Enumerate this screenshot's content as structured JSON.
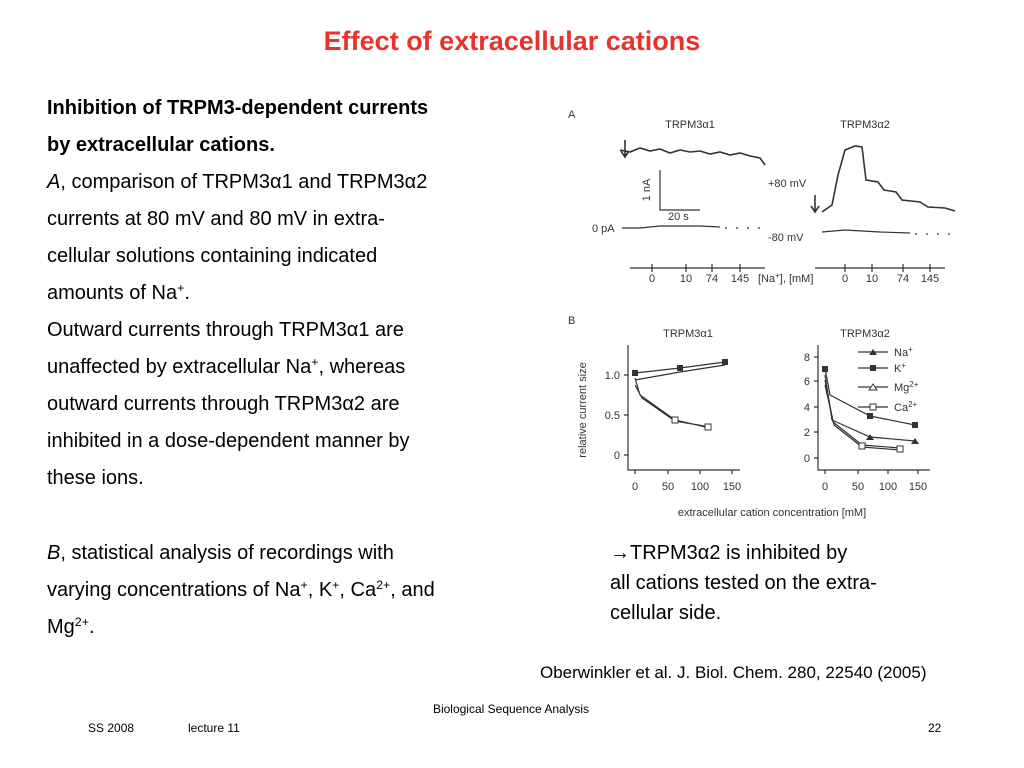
{
  "title": "Effect of extracellular cations",
  "paragraphs": [
    {
      "lines": [
        [
          {
            "text": "Inhibition of TRPM3-dependent currents",
            "style": "bold"
          }
        ],
        [
          {
            "text": "by extracellular cations.",
            "style": "bold"
          }
        ],
        [
          {
            "text": "A",
            "style": "italic"
          },
          ", comparison of TRPM3α1 and TRPM3α2"
        ],
        [
          "currents at 80 mV and 80 mV in extra-"
        ],
        [
          "cellular solutions containing indicated"
        ],
        [
          "amounts of Na",
          {
            "text": "+",
            "style": "sup"
          },
          "."
        ],
        [
          "Outward currents through TRPM3α1 are"
        ],
        [
          "unaffected by extracellular Na",
          {
            "text": "+",
            "style": "sup"
          },
          ", whereas"
        ],
        [
          "outward currents through TRPM3α2 are"
        ],
        [
          "inhibited in a dose-dependent manner by"
        ],
        [
          "these ions."
        ]
      ]
    },
    {
      "lines": [
        [
          {
            "text": "B",
            "style": "italic"
          },
          ", statistical analysis of recordings with"
        ],
        [
          "varying concentrations of Na",
          {
            "text": "+",
            "style": "sup"
          },
          ", K",
          {
            "text": "+",
            "style": "sup"
          },
          ", Ca",
          {
            "text": "2+",
            "style": "sup"
          },
          ", and"
        ],
        [
          "Mg",
          {
            "text": "2+",
            "style": "sup"
          },
          "."
        ]
      ]
    }
  ],
  "note_lines": [
    "→TRPM3α2  is inhibited by",
    "all cations tested on the extra-",
    "cellular side."
  ],
  "citation": "Oberwinkler et al. J. Biol. Chem. 280, 22540 (2005)",
  "footer": {
    "center": "Biological Sequence Analysis",
    "date": "SS 2008",
    "lecture": "lecture 11",
    "page": "22"
  },
  "figure": {
    "panel_a": {
      "label": "A",
      "titles": [
        "TRPM3α1",
        "TRPM3α2"
      ],
      "scale_current": "1 nA",
      "scale_time": "20 s",
      "zero_label": "0 pA",
      "voltage_labels": [
        "+80 mV",
        "-80 mV"
      ],
      "concentrations_left": [
        "0",
        "10",
        "74",
        "145"
      ],
      "concentration_unit": [
        "[Na",
        {
          "text": "+",
          "style": "sup"
        },
        "], [mM]"
      ],
      "concentrations_right": [
        "0",
        "10",
        "74",
        "145"
      ]
    },
    "panel_b": {
      "label": "B",
      "titles": [
        "TRPM3α1",
        "TRPM3α2"
      ],
      "y_label": "relative current size",
      "left_yticks": [
        "1.0",
        "0.5",
        "0"
      ],
      "right_yticks": [
        "8",
        "6",
        "4",
        "2",
        "0"
      ],
      "left_xticks": [
        "0",
        "50",
        "100",
        "150"
      ],
      "right_xticks": [
        "0",
        "50",
        "100",
        "150"
      ],
      "legend": [
        [
          "Na",
          {
            "text": "+",
            "style": "sup"
          }
        ],
        [
          "K",
          {
            "text": "+",
            "style": "sup"
          }
        ],
        [
          "Mg",
          {
            "text": "2+",
            "style": "sup"
          }
        ],
        [
          "Ca",
          {
            "text": "2+",
            "style": "sup"
          }
        ]
      ],
      "x_label": "extracellular cation concentration [mM]"
    }
  }
}
